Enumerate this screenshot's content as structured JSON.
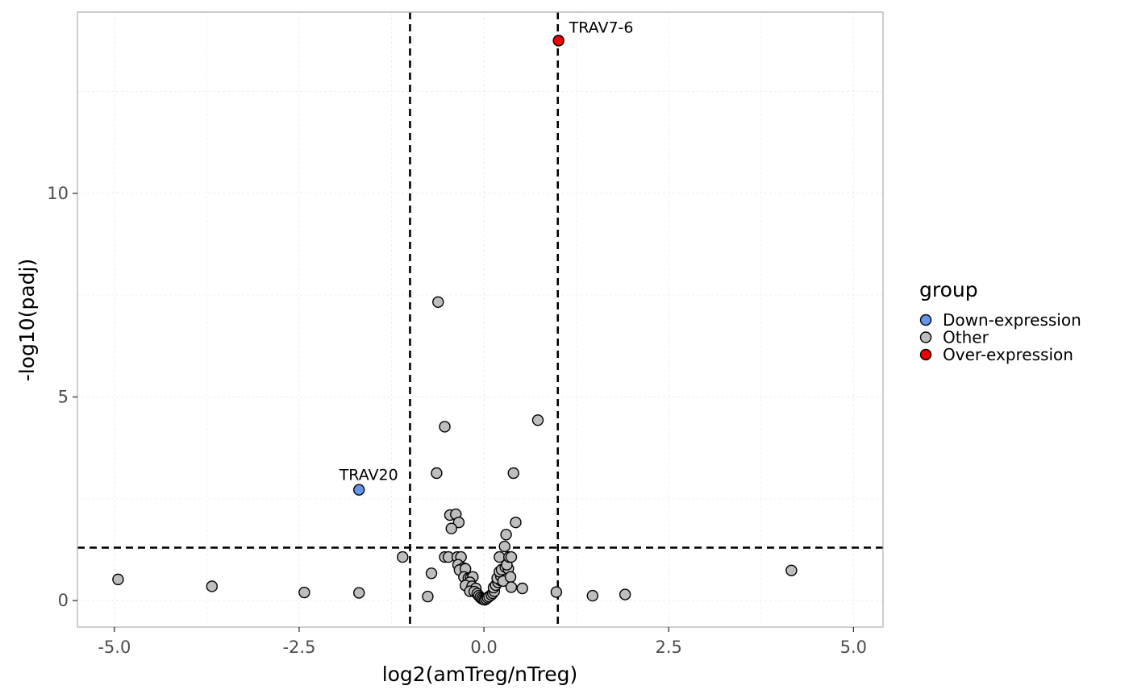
{
  "chart_data": {
    "type": "scatter",
    "xlabel": "log2(amTreg/nTreg)",
    "ylabel": "-log10(padj)",
    "xlim": [
      -5.5,
      5.4
    ],
    "ylim": [
      -0.65,
      14.45
    ],
    "xticks": [
      {
        "value": -5.0,
        "label": "-5.0"
      },
      {
        "value": -2.5,
        "label": "-2.5"
      },
      {
        "value": 0.0,
        "label": "0.0"
      },
      {
        "value": 2.5,
        "label": "2.5"
      },
      {
        "value": 5.0,
        "label": "5.0"
      }
    ],
    "yticks": [
      {
        "value": 0,
        "label": "0"
      },
      {
        "value": 5,
        "label": "5"
      },
      {
        "value": 10,
        "label": "10"
      }
    ],
    "grid": true,
    "thresholds": {
      "x": [
        -1.0,
        1.0
      ],
      "y": 1.3
    },
    "legend": {
      "title": "group",
      "position": "right",
      "entries": [
        {
          "name": "Down-expression",
          "color": "#6495ED"
        },
        {
          "name": "Other",
          "color": "#BEBEBE"
        },
        {
          "name": "Over-expression",
          "color": "#EE0000"
        }
      ]
    },
    "series": [
      {
        "name": "Down-expression",
        "color": "#6495ED",
        "points": [
          [
            -1.69,
            2.72
          ]
        ]
      },
      {
        "name": "Other",
        "color": "#BEBEBE",
        "points": [
          [
            -4.95,
            0.52
          ],
          [
            -3.68,
            0.35
          ],
          [
            -2.43,
            0.2
          ],
          [
            -1.69,
            0.19
          ],
          [
            -1.1,
            1.07
          ],
          [
            -0.76,
            0.1
          ],
          [
            -0.71,
            0.67
          ],
          [
            -0.62,
            7.33
          ],
          [
            -0.64,
            3.13
          ],
          [
            -0.53,
            4.27
          ],
          [
            -0.46,
            2.1
          ],
          [
            -0.38,
            2.12
          ],
          [
            -0.34,
            1.92
          ],
          [
            -0.44,
            1.77
          ],
          [
            -0.53,
            1.07
          ],
          [
            -0.48,
            1.07
          ],
          [
            -0.36,
            1.07
          ],
          [
            -0.31,
            1.07
          ],
          [
            -0.35,
            0.88
          ],
          [
            -0.28,
            0.8
          ],
          [
            -0.33,
            0.75
          ],
          [
            -0.25,
            0.78
          ],
          [
            -0.27,
            0.58
          ],
          [
            -0.21,
            0.55
          ],
          [
            -0.18,
            0.55
          ],
          [
            -0.15,
            0.58
          ],
          [
            -0.19,
            0.45
          ],
          [
            -0.25,
            0.37
          ],
          [
            -0.16,
            0.35
          ],
          [
            -0.11,
            0.3
          ],
          [
            -0.19,
            0.23
          ],
          [
            -0.13,
            0.22
          ],
          [
            -0.09,
            0.17
          ],
          [
            -0.07,
            0.12
          ],
          [
            -0.05,
            0.08
          ],
          [
            -0.03,
            0.05
          ],
          [
            -0.01,
            0.03
          ],
          [
            0.01,
            0.02
          ],
          [
            0.03,
            0.04
          ],
          [
            0.05,
            0.07
          ],
          [
            0.07,
            0.1
          ],
          [
            0.1,
            0.14
          ],
          [
            0.12,
            0.18
          ],
          [
            0.14,
            0.23
          ],
          [
            0.13,
            0.32
          ],
          [
            0.16,
            0.38
          ],
          [
            0.19,
            0.45
          ],
          [
            0.22,
            0.5
          ],
          [
            0.18,
            0.55
          ],
          [
            0.23,
            0.6
          ],
          [
            0.26,
            0.48
          ],
          [
            0.21,
            0.71
          ],
          [
            0.24,
            0.76
          ],
          [
            0.29,
            0.82
          ],
          [
            0.33,
            0.78
          ],
          [
            0.31,
            0.88
          ],
          [
            0.21,
            1.07
          ],
          [
            0.34,
            1.07
          ],
          [
            0.37,
            1.07
          ],
          [
            0.28,
            1.33
          ],
          [
            0.3,
            1.62
          ],
          [
            0.43,
            1.92
          ],
          [
            0.4,
            3.13
          ],
          [
            0.36,
            0.58
          ],
          [
            0.37,
            0.33
          ],
          [
            0.52,
            0.3
          ],
          [
            0.73,
            4.43
          ],
          [
            0.98,
            0.21
          ],
          [
            1.47,
            0.12
          ],
          [
            1.91,
            0.15
          ],
          [
            4.16,
            0.74
          ]
        ]
      },
      {
        "name": "Over-expression",
        "color": "#EE0000",
        "points": [
          [
            1.01,
            13.75
          ]
        ]
      }
    ],
    "annotations": [
      {
        "text": "TRAV7-6",
        "x": 1.01,
        "y": 13.75
      },
      {
        "text": "TRAV20",
        "x": -1.69,
        "y": 2.72
      }
    ]
  }
}
